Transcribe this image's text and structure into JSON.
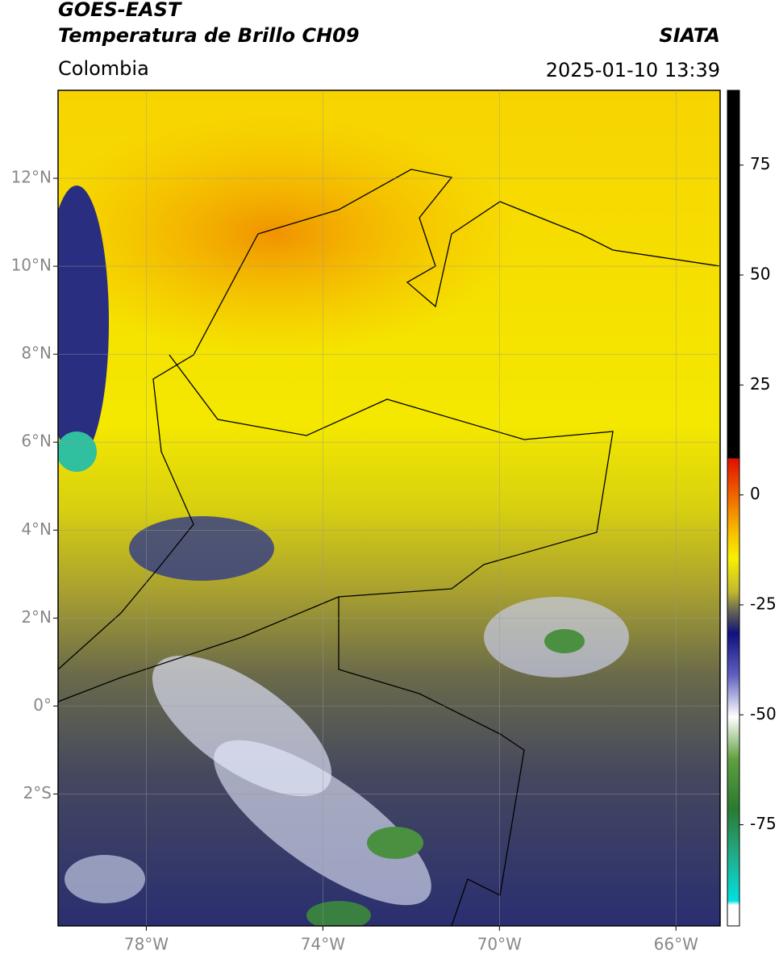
{
  "header": {
    "title": "GOES-EAST",
    "subtitle": "Temperatura de Brillo CH09",
    "region": "Colombia",
    "source": "SIATA",
    "datetime": "2025-01-10 13:39"
  },
  "map": {
    "xlim": [
      -80,
      -65
    ],
    "ylim": [
      -5,
      14
    ],
    "lon_ticks": [
      {
        "value": -78,
        "label": "78°W"
      },
      {
        "value": -74,
        "label": "74°W"
      },
      {
        "value": -70,
        "label": "70°W"
      },
      {
        "value": -66,
        "label": "66°W"
      }
    ],
    "lat_ticks": [
      {
        "value": 12,
        "label": "12°N"
      },
      {
        "value": 10,
        "label": "10°N"
      },
      {
        "value": 8,
        "label": "8°N"
      },
      {
        "value": 6,
        "label": "6°N"
      },
      {
        "value": 4,
        "label": "4°N"
      },
      {
        "value": 2,
        "label": "2°N"
      },
      {
        "value": 0,
        "label": "0°"
      },
      {
        "value": -2,
        "label": "2°S"
      }
    ],
    "grid": true
  },
  "colorbar": {
    "lim": [
      -98,
      92
    ],
    "ticks": [
      75,
      50,
      25,
      0,
      -25,
      -50,
      -75
    ]
  }
}
